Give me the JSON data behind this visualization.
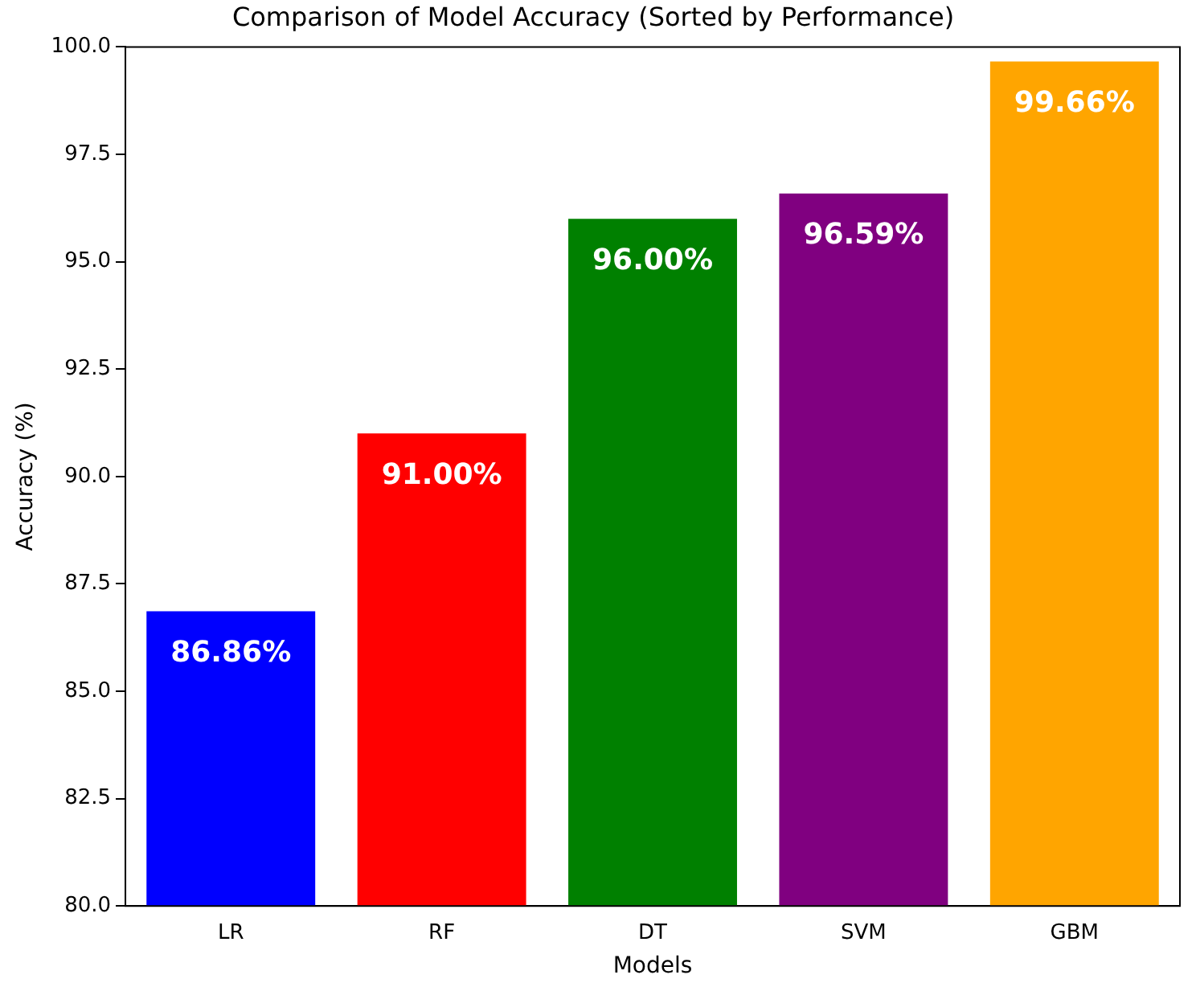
{
  "chart_data": {
    "type": "bar",
    "title": "Comparison of Model Accuracy (Sorted by Performance)",
    "xlabel": "Models",
    "ylabel": "Accuracy (%)",
    "categories": [
      "LR",
      "RF",
      "DT",
      "SVM",
      "GBM"
    ],
    "values": [
      86.86,
      91.0,
      96.0,
      96.59,
      99.66
    ],
    "colors": [
      "#0000ff",
      "#ff0000",
      "#008000",
      "#800080",
      "#ffa500"
    ],
    "value_labels": [
      "86.86%",
      "91.00%",
      "96.00%",
      "96.59%",
      "99.66%"
    ],
    "ylim": [
      80,
      100
    ],
    "yticks": [
      {
        "value": 80,
        "label": "80.0"
      },
      {
        "value": 82.5,
        "label": "82.5"
      },
      {
        "value": 85,
        "label": "85.0"
      },
      {
        "value": 87.5,
        "label": "87.5"
      },
      {
        "value": 90,
        "label": "90.0"
      },
      {
        "value": 92.5,
        "label": "92.5"
      },
      {
        "value": 95,
        "label": "95.0"
      },
      {
        "value": 97.5,
        "label": "97.5"
      },
      {
        "value": 100,
        "label": "100.0"
      }
    ],
    "grid": false,
    "legend": false
  }
}
